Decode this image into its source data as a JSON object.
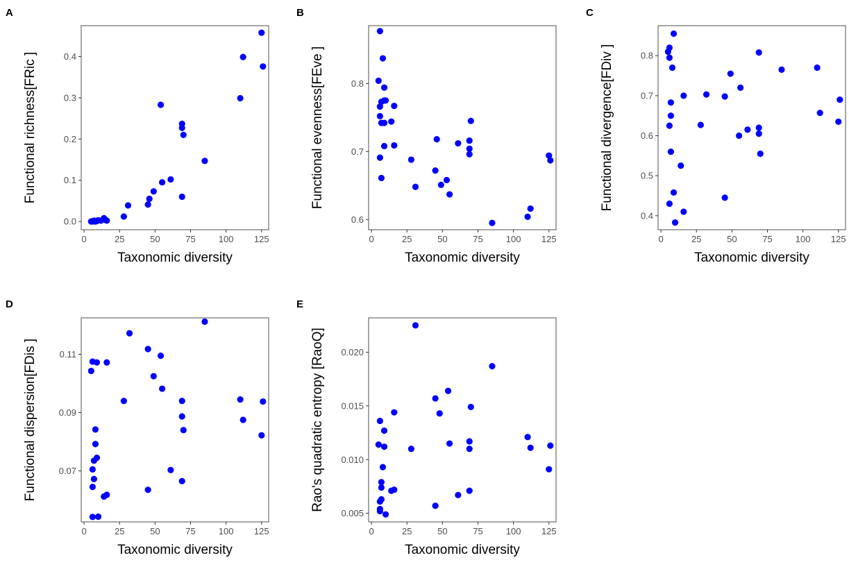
{
  "chart_data": [
    {
      "panel": "A",
      "type": "scatter",
      "xlabel": "Taxonomic diversity",
      "ylabel": "Functional richness[FRic ]",
      "xlim": [
        -2,
        130
      ],
      "ylim": [
        -0.02,
        0.475
      ],
      "xticks": [
        0,
        25,
        50,
        75,
        100,
        125
      ],
      "xtick_labels": [
        "0",
        "25",
        "50",
        "75",
        "100",
        "125"
      ],
      "yticks": [
        0,
        0.1,
        0.2,
        0.3,
        0.4
      ],
      "ytick_labels": [
        "0.0",
        "0.1",
        "0.2",
        "0.3",
        "0.4"
      ],
      "grid": false,
      "color": "#0000ff",
      "points": [
        {
          "x": 5,
          "y": 0.0
        },
        {
          "x": 6,
          "y": 0.0
        },
        {
          "x": 7,
          "y": 0.002
        },
        {
          "x": 8,
          "y": 0.0
        },
        {
          "x": 9,
          "y": 0.001
        },
        {
          "x": 10,
          "y": 0.003
        },
        {
          "x": 12,
          "y": 0.002
        },
        {
          "x": 14,
          "y": 0.008
        },
        {
          "x": 15,
          "y": 0.004
        },
        {
          "x": 16,
          "y": 0.002
        },
        {
          "x": 28,
          "y": 0.012
        },
        {
          "x": 31,
          "y": 0.039
        },
        {
          "x": 45,
          "y": 0.041
        },
        {
          "x": 46,
          "y": 0.055
        },
        {
          "x": 49,
          "y": 0.073
        },
        {
          "x": 54,
          "y": 0.283
        },
        {
          "x": 55,
          "y": 0.095
        },
        {
          "x": 61,
          "y": 0.102
        },
        {
          "x": 69,
          "y": 0.06
        },
        {
          "x": 69,
          "y": 0.237
        },
        {
          "x": 69,
          "y": 0.227
        },
        {
          "x": 70,
          "y": 0.21
        },
        {
          "x": 85,
          "y": 0.147
        },
        {
          "x": 110,
          "y": 0.299
        },
        {
          "x": 112,
          "y": 0.399
        },
        {
          "x": 125,
          "y": 0.458
        },
        {
          "x": 126,
          "y": 0.376
        }
      ]
    },
    {
      "panel": "B",
      "type": "scatter",
      "xlabel": "Taxonomic diversity",
      "ylabel": "Functional evenness[FEve ]",
      "xlim": [
        -2,
        130
      ],
      "ylim": [
        0.585,
        0.885
      ],
      "xticks": [
        0,
        25,
        50,
        75,
        100,
        125
      ],
      "xtick_labels": [
        "0",
        "25",
        "50",
        "75",
        "100",
        "125"
      ],
      "yticks": [
        0.6,
        0.7,
        0.8
      ],
      "ytick_labels": [
        "0.6",
        "0.7",
        "0.8"
      ],
      "grid": false,
      "color": "#0000ff",
      "points": [
        {
          "x": 5,
          "y": 0.804
        },
        {
          "x": 6,
          "y": 0.877
        },
        {
          "x": 6,
          "y": 0.766
        },
        {
          "x": 6,
          "y": 0.752
        },
        {
          "x": 6,
          "y": 0.691
        },
        {
          "x": 7,
          "y": 0.773
        },
        {
          "x": 7,
          "y": 0.742
        },
        {
          "x": 7,
          "y": 0.661
        },
        {
          "x": 8,
          "y": 0.837
        },
        {
          "x": 9,
          "y": 0.794
        },
        {
          "x": 9,
          "y": 0.775
        },
        {
          "x": 9,
          "y": 0.742
        },
        {
          "x": 9,
          "y": 0.708
        },
        {
          "x": 10,
          "y": 0.775
        },
        {
          "x": 14,
          "y": 0.744
        },
        {
          "x": 16,
          "y": 0.767
        },
        {
          "x": 16,
          "y": 0.709
        },
        {
          "x": 28,
          "y": 0.688
        },
        {
          "x": 31,
          "y": 0.648
        },
        {
          "x": 45,
          "y": 0.672
        },
        {
          "x": 46,
          "y": 0.718
        },
        {
          "x": 49,
          "y": 0.651
        },
        {
          "x": 53,
          "y": 0.658
        },
        {
          "x": 55,
          "y": 0.637
        },
        {
          "x": 61,
          "y": 0.712
        },
        {
          "x": 69,
          "y": 0.716
        },
        {
          "x": 69,
          "y": 0.704
        },
        {
          "x": 69,
          "y": 0.696
        },
        {
          "x": 70,
          "y": 0.745
        },
        {
          "x": 85,
          "y": 0.595
        },
        {
          "x": 110,
          "y": 0.604
        },
        {
          "x": 112,
          "y": 0.616
        },
        {
          "x": 125,
          "y": 0.694
        },
        {
          "x": 126,
          "y": 0.687
        }
      ]
    },
    {
      "panel": "C",
      "type": "scatter",
      "xlabel": "Taxonomic diversity",
      "ylabel": "Functional divergence[FDiv ]",
      "xlim": [
        -2,
        130
      ],
      "ylim": [
        0.365,
        0.875
      ],
      "xticks": [
        0,
        25,
        50,
        75,
        100,
        125
      ],
      "xtick_labels": [
        "0",
        "25",
        "50",
        "75",
        "100",
        "125"
      ],
      "yticks": [
        0.4,
        0.5,
        0.6,
        0.7,
        0.8
      ],
      "ytick_labels": [
        "0.4",
        "0.5",
        "0.6",
        "0.7",
        "0.8"
      ],
      "grid": false,
      "color": "#0000ff",
      "points": [
        {
          "x": 5,
          "y": 0.81
        },
        {
          "x": 6,
          "y": 0.82
        },
        {
          "x": 6,
          "y": 0.795
        },
        {
          "x": 6,
          "y": 0.625
        },
        {
          "x": 6,
          "y": 0.43
        },
        {
          "x": 7,
          "y": 0.683
        },
        {
          "x": 7,
          "y": 0.65
        },
        {
          "x": 7,
          "y": 0.56
        },
        {
          "x": 8,
          "y": 0.77
        },
        {
          "x": 9,
          "y": 0.855
        },
        {
          "x": 9,
          "y": 0.458
        },
        {
          "x": 10,
          "y": 0.383
        },
        {
          "x": 14,
          "y": 0.525
        },
        {
          "x": 16,
          "y": 0.7
        },
        {
          "x": 16,
          "y": 0.41
        },
        {
          "x": 28,
          "y": 0.627
        },
        {
          "x": 32,
          "y": 0.703
        },
        {
          "x": 45,
          "y": 0.698
        },
        {
          "x": 45,
          "y": 0.445
        },
        {
          "x": 49,
          "y": 0.755
        },
        {
          "x": 55,
          "y": 0.6
        },
        {
          "x": 56,
          "y": 0.72
        },
        {
          "x": 61,
          "y": 0.615
        },
        {
          "x": 69,
          "y": 0.808
        },
        {
          "x": 69,
          "y": 0.62
        },
        {
          "x": 69,
          "y": 0.605
        },
        {
          "x": 70,
          "y": 0.555
        },
        {
          "x": 85,
          "y": 0.765
        },
        {
          "x": 110,
          "y": 0.77
        },
        {
          "x": 112,
          "y": 0.657
        },
        {
          "x": 125,
          "y": 0.635
        },
        {
          "x": 126,
          "y": 0.69
        }
      ]
    },
    {
      "panel": "D",
      "type": "scatter",
      "xlabel": "Taxonomic diversity",
      "ylabel": "Functional dispersion[FDis ]",
      "xlim": [
        -2,
        130
      ],
      "ylim": [
        0.0525,
        0.1225
      ],
      "xticks": [
        0,
        25,
        50,
        75,
        100,
        125
      ],
      "xtick_labels": [
        "0",
        "25",
        "50",
        "75",
        "100",
        "125"
      ],
      "yticks": [
        0.07,
        0.09,
        0.11
      ],
      "ytick_labels": [
        "0.07",
        "0.09",
        "0.11"
      ],
      "grid": false,
      "color": "#0000ff",
      "points": [
        {
          "x": 5,
          "y": 0.1043
        },
        {
          "x": 6,
          "y": 0.1075
        },
        {
          "x": 6,
          "y": 0.0705
        },
        {
          "x": 6,
          "y": 0.0645
        },
        {
          "x": 6,
          "y": 0.0542
        },
        {
          "x": 7,
          "y": 0.0672
        },
        {
          "x": 7,
          "y": 0.0735
        },
        {
          "x": 8,
          "y": 0.0792
        },
        {
          "x": 8,
          "y": 0.0842
        },
        {
          "x": 9,
          "y": 0.1072
        },
        {
          "x": 9,
          "y": 0.0745
        },
        {
          "x": 10,
          "y": 0.0543
        },
        {
          "x": 14,
          "y": 0.0612
        },
        {
          "x": 16,
          "y": 0.1072
        },
        {
          "x": 16,
          "y": 0.0618
        },
        {
          "x": 28,
          "y": 0.094
        },
        {
          "x": 32,
          "y": 0.1172
        },
        {
          "x": 45,
          "y": 0.1118
        },
        {
          "x": 45,
          "y": 0.0635
        },
        {
          "x": 49,
          "y": 0.1025
        },
        {
          "x": 54,
          "y": 0.1095
        },
        {
          "x": 55,
          "y": 0.0982
        },
        {
          "x": 61,
          "y": 0.0703
        },
        {
          "x": 69,
          "y": 0.094
        },
        {
          "x": 69,
          "y": 0.0887
        },
        {
          "x": 69,
          "y": 0.0665
        },
        {
          "x": 70,
          "y": 0.084
        },
        {
          "x": 85,
          "y": 0.1212
        },
        {
          "x": 110,
          "y": 0.0945
        },
        {
          "x": 112,
          "y": 0.0875
        },
        {
          "x": 125,
          "y": 0.0822
        },
        {
          "x": 126,
          "y": 0.0938
        }
      ]
    },
    {
      "panel": "E",
      "type": "scatter",
      "xlabel": "Taxonomic diversity",
      "ylabel": "Rao's quadratic entropy [RaoQ]",
      "xlim": [
        -2,
        130
      ],
      "ylim": [
        0.0042,
        0.0232
      ],
      "xticks": [
        0,
        25,
        50,
        75,
        100,
        125
      ],
      "xtick_labels": [
        "0",
        "25",
        "50",
        "75",
        "100",
        "125"
      ],
      "yticks": [
        0.005,
        0.01,
        0.015,
        0.02
      ],
      "ytick_labels": [
        "0.005",
        "0.010",
        "0.015",
        "0.020"
      ],
      "grid": false,
      "color": "#0000ff",
      "points": [
        {
          "x": 5,
          "y": 0.0114
        },
        {
          "x": 6,
          "y": 0.0136
        },
        {
          "x": 6,
          "y": 0.0061
        },
        {
          "x": 6,
          "y": 0.0054
        },
        {
          "x": 6,
          "y": 0.0052
        },
        {
          "x": 7,
          "y": 0.0079
        },
        {
          "x": 7,
          "y": 0.0074
        },
        {
          "x": 7,
          "y": 0.0063
        },
        {
          "x": 8,
          "y": 0.0093
        },
        {
          "x": 9,
          "y": 0.0127
        },
        {
          "x": 9,
          "y": 0.0112
        },
        {
          "x": 10,
          "y": 0.0049
        },
        {
          "x": 14,
          "y": 0.0071
        },
        {
          "x": 16,
          "y": 0.0144
        },
        {
          "x": 16,
          "y": 0.0072
        },
        {
          "x": 28,
          "y": 0.011
        },
        {
          "x": 31,
          "y": 0.0225
        },
        {
          "x": 45,
          "y": 0.0157
        },
        {
          "x": 45,
          "y": 0.0057
        },
        {
          "x": 48,
          "y": 0.0143
        },
        {
          "x": 54,
          "y": 0.0164
        },
        {
          "x": 55,
          "y": 0.0115
        },
        {
          "x": 61,
          "y": 0.0067
        },
        {
          "x": 69,
          "y": 0.0117
        },
        {
          "x": 69,
          "y": 0.011
        },
        {
          "x": 69,
          "y": 0.0071
        },
        {
          "x": 70,
          "y": 0.0149
        },
        {
          "x": 85,
          "y": 0.0187
        },
        {
          "x": 110,
          "y": 0.0121
        },
        {
          "x": 112,
          "y": 0.0111
        },
        {
          "x": 125,
          "y": 0.0091
        },
        {
          "x": 126,
          "y": 0.0113
        }
      ]
    }
  ]
}
